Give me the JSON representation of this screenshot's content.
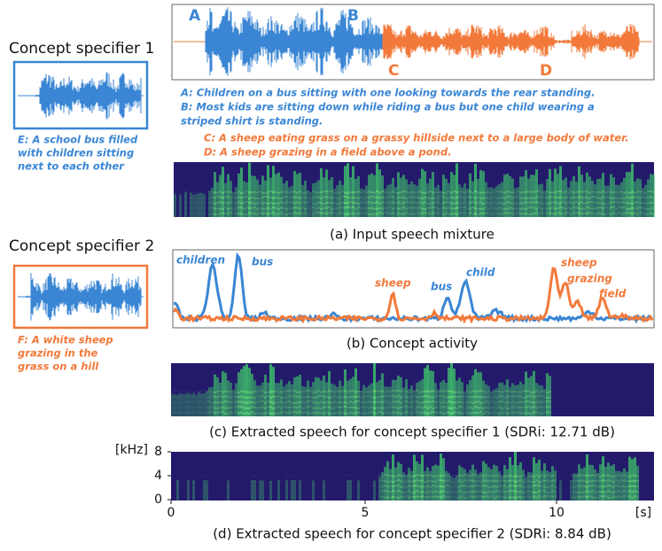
{
  "figure": {
    "specifiers": [
      {
        "label": "Concept specifier 1",
        "caption_lines": [
          "E: A school bus filled",
          "with children sitting",
          "next to each other"
        ]
      },
      {
        "label": "Concept specifier 2",
        "caption_lines": [
          "F: A white sheep",
          "grazing in the",
          "grass on a hill"
        ]
      }
    ],
    "mixture": {
      "markers": [
        "A",
        "B",
        "C",
        "D"
      ],
      "blue_lines": [
        "A: Children on a bus sitting with one looking towards the rear standing.",
        "B: Most kids are sitting down while riding a bus but one child wearing a",
        "striped shirt is standing."
      ],
      "orange_lines": [
        "C: A sheep eating grass on a grassy hillside next to a large body of water.",
        "D: A sheep grazing in a field above a pond."
      ]
    },
    "captions": [
      "(a) Input speech mixture",
      "(b) Concept activity",
      "(c) Extracted speech for concept specifier 1 (SDRi: 12.71 dB)",
      "(d) Extracted speech for concept specifier 2 (SDRi: 8.84 dB)"
    ],
    "activity_labels": [
      "children",
      "bus",
      "sheep",
      "bus",
      "child",
      "sheep",
      "grazing",
      "field"
    ],
    "axis": {
      "y_unit": "[kHz]",
      "y_ticks": [
        "8",
        "4",
        "0"
      ],
      "x_ticks": [
        "0",
        "5",
        "10"
      ],
      "x_unit": "[s]"
    }
  }
}
